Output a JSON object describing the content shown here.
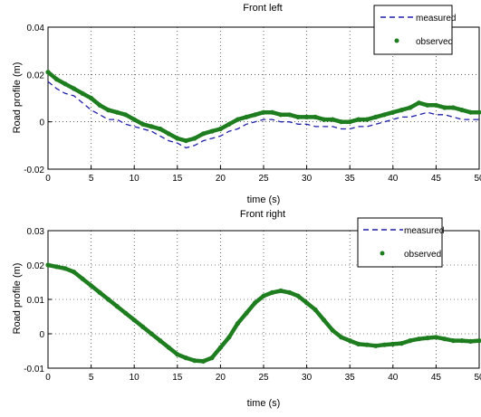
{
  "chart_data": [
    {
      "type": "line",
      "title": "Front left",
      "xlabel": "time (s)",
      "ylabel": "Road profile (m)",
      "xlim": [
        0,
        50
      ],
      "ylim": [
        -0.02,
        0.04
      ],
      "xticks": [
        "0",
        "5",
        "10",
        "15",
        "20",
        "25",
        "30",
        "35",
        "40",
        "45",
        "50"
      ],
      "yticks": [
        "-0.02",
        "0",
        "0.02",
        "0.04"
      ],
      "grid": true,
      "legend": "top-right",
      "series": [
        {
          "name": "measured",
          "style": "dashed",
          "color": "#1f1fa8",
          "x": [
            0,
            1,
            2,
            3,
            4,
            5,
            6,
            7,
            8,
            9,
            10,
            11,
            12,
            13,
            14,
            15,
            16,
            17,
            18,
            19,
            20,
            21,
            22,
            23,
            24,
            25,
            26,
            27,
            28,
            29,
            30,
            31,
            32,
            33,
            34,
            35,
            36,
            37,
            38,
            39,
            40,
            41,
            42,
            43,
            44,
            45,
            46,
            47,
            48,
            49,
            50
          ],
          "y": [
            0.017,
            0.014,
            0.012,
            0.011,
            0.008,
            0.005,
            0.003,
            0.001,
            0.001,
            -0.001,
            -0.002,
            -0.003,
            -0.004,
            -0.006,
            -0.008,
            -0.009,
            -0.011,
            -0.01,
            -0.008,
            -0.007,
            -0.006,
            -0.004,
            -0.003,
            -0.001,
            0.0,
            0.001,
            0.001,
            0.0,
            0.0,
            -0.001,
            -0.001,
            -0.002,
            -0.002,
            -0.002,
            -0.003,
            -0.003,
            -0.002,
            -0.002,
            -0.001,
            0.0,
            0.001,
            0.002,
            0.002,
            0.003,
            0.004,
            0.003,
            0.003,
            0.002,
            0.001,
            0.001,
            0.001
          ]
        },
        {
          "name": "observed",
          "style": "markers",
          "color": "#1e7d1e",
          "x": [
            0,
            1,
            2,
            3,
            4,
            5,
            6,
            7,
            8,
            9,
            10,
            11,
            12,
            13,
            14,
            15,
            16,
            17,
            18,
            19,
            20,
            21,
            22,
            23,
            24,
            25,
            26,
            27,
            28,
            29,
            30,
            31,
            32,
            33,
            34,
            35,
            36,
            37,
            38,
            39,
            40,
            41,
            42,
            43,
            44,
            45,
            46,
            47,
            48,
            49,
            50
          ],
          "y": [
            0.021,
            0.018,
            0.016,
            0.014,
            0.012,
            0.01,
            0.007,
            0.005,
            0.004,
            0.003,
            0.001,
            -0.001,
            -0.002,
            -0.003,
            -0.005,
            -0.007,
            -0.008,
            -0.007,
            -0.005,
            -0.004,
            -0.003,
            -0.001,
            0.001,
            0.002,
            0.003,
            0.004,
            0.004,
            0.003,
            0.003,
            0.002,
            0.002,
            0.002,
            0.001,
            0.001,
            0.0,
            0.0,
            0.001,
            0.001,
            0.002,
            0.003,
            0.004,
            0.005,
            0.006,
            0.008,
            0.007,
            0.007,
            0.006,
            0.006,
            0.005,
            0.004,
            0.004
          ]
        }
      ]
    },
    {
      "type": "line",
      "title": "Front right",
      "xlabel": "time (s)",
      "ylabel": "Road profile (m)",
      "xlim": [
        0,
        50
      ],
      "ylim": [
        -0.01,
        0.03
      ],
      "xticks": [
        "0",
        "5",
        "10",
        "15",
        "20",
        "25",
        "30",
        "35",
        "40",
        "45",
        "50"
      ],
      "yticks": [
        "-0.01",
        "0",
        "0.01",
        "0.02",
        "0.03"
      ],
      "grid": true,
      "legend": "top-right",
      "series": [
        {
          "name": "measured",
          "style": "dashed",
          "color": "#1f1fa8",
          "x": [
            0,
            1,
            2,
            3,
            4,
            5,
            6,
            7,
            8,
            9,
            10,
            11,
            12,
            13,
            14,
            15,
            16,
            17,
            18,
            19,
            20,
            21,
            22,
            23,
            24,
            25,
            26,
            27,
            28,
            29,
            30,
            31,
            32,
            33,
            34,
            35,
            36,
            37,
            38,
            39,
            40,
            41,
            42,
            43,
            44,
            45,
            46,
            47,
            48,
            49,
            50
          ],
          "y": [
            0.02,
            0.0195,
            0.019,
            0.018,
            0.016,
            0.014,
            0.012,
            0.01,
            0.008,
            0.006,
            0.004,
            0.002,
            0.0,
            -0.002,
            -0.004,
            -0.006,
            -0.007,
            -0.0078,
            -0.008,
            -0.007,
            -0.004,
            -0.001,
            0.003,
            0.006,
            0.009,
            0.011,
            0.012,
            0.0125,
            0.012,
            0.011,
            0.009,
            0.007,
            0.004,
            0.001,
            -0.001,
            -0.002,
            -0.003,
            -0.0032,
            -0.0035,
            -0.0032,
            -0.003,
            -0.0028,
            -0.002,
            -0.0015,
            -0.0012,
            -0.001,
            -0.0015,
            -0.002,
            -0.002,
            -0.0022,
            -0.002
          ]
        },
        {
          "name": "observed",
          "style": "markers",
          "color": "#1e7d1e",
          "x": [
            0,
            1,
            2,
            3,
            4,
            5,
            6,
            7,
            8,
            9,
            10,
            11,
            12,
            13,
            14,
            15,
            16,
            17,
            18,
            19,
            20,
            21,
            22,
            23,
            24,
            25,
            26,
            27,
            28,
            29,
            30,
            31,
            32,
            33,
            34,
            35,
            36,
            37,
            38,
            39,
            40,
            41,
            42,
            43,
            44,
            45,
            46,
            47,
            48,
            49,
            50
          ],
          "y": [
            0.02,
            0.0195,
            0.019,
            0.018,
            0.016,
            0.014,
            0.012,
            0.01,
            0.008,
            0.006,
            0.004,
            0.002,
            0.0,
            -0.002,
            -0.004,
            -0.006,
            -0.007,
            -0.0078,
            -0.008,
            -0.007,
            -0.004,
            -0.001,
            0.003,
            0.006,
            0.009,
            0.011,
            0.012,
            0.0125,
            0.012,
            0.011,
            0.009,
            0.007,
            0.004,
            0.001,
            -0.001,
            -0.002,
            -0.003,
            -0.0032,
            -0.0035,
            -0.0032,
            -0.003,
            -0.0028,
            -0.002,
            -0.0015,
            -0.0012,
            -0.001,
            -0.0015,
            -0.002,
            -0.002,
            -0.0022,
            -0.002
          ]
        }
      ]
    }
  ]
}
